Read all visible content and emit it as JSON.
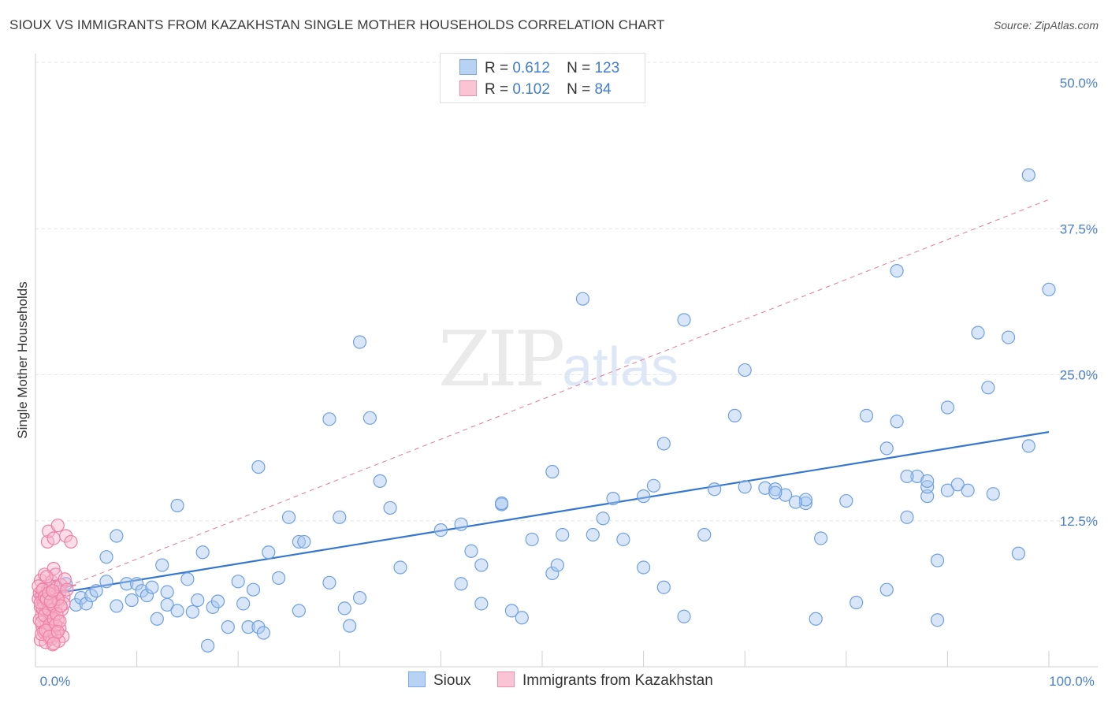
{
  "title": "SIOUX VS IMMIGRANTS FROM KAZAKHSTAN SINGLE MOTHER HOUSEHOLDS CORRELATION CHART",
  "source": "Source: ZipAtlas.com",
  "watermark": {
    "zip": "ZIP",
    "atlas": "atlas"
  },
  "legend": {
    "rows": [
      {
        "r_label": "R =",
        "r_value": "0.612",
        "n_label": "N =",
        "n_value": "123"
      },
      {
        "r_label": "R =",
        "r_value": "0.102",
        "n_label": "N =",
        "n_value": "84"
      }
    ]
  },
  "bottom_legend": {
    "series1": "Sioux",
    "series2": "Immigrants from Kazakhstan"
  },
  "colors": {
    "sioux_fill": "#a9c8f0",
    "sioux_stroke": "#6fa0e0",
    "sioux_line": "#3577d0",
    "kaz_fill": "#f6b6cb",
    "kaz_stroke": "#ee7fa5",
    "kaz_line": "#e07a9b",
    "tick_text": "#4a7fd0",
    "grid": "#e3e3e3"
  },
  "chart_data": {
    "type": "scatter",
    "title": "SIOUX VS IMMIGRANTS FROM KAZAKHSTAN SINGLE MOTHER HOUSEHOLDS CORRELATION CHART",
    "xlabel": "",
    "ylabel": "Single Mother Households",
    "xlim": [
      0,
      100
    ],
    "ylim": [
      0,
      50
    ],
    "x_tick_labels": [
      "0.0%",
      "100.0%"
    ],
    "y_ticks": [
      12.5,
      25.0,
      37.5,
      50.0
    ],
    "y_tick_labels": [
      "12.5%",
      "25.0%",
      "37.5%",
      "50.0%"
    ],
    "grid": true,
    "legend_position": "top-center",
    "series": [
      {
        "name": "Sioux",
        "r": 0.612,
        "n": 123,
        "trend": {
          "x": [
            0,
            100
          ],
          "y": [
            6.0,
            20.1
          ],
          "style": "solid"
        },
        "points": [
          [
            2,
            6.9
          ],
          [
            3,
            7.1
          ],
          [
            4,
            5.3
          ],
          [
            4.5,
            5.9
          ],
          [
            5,
            5.4
          ],
          [
            5.5,
            6.1
          ],
          [
            6,
            6.5
          ],
          [
            7,
            7.3
          ],
          [
            7,
            9.4
          ],
          [
            8,
            11.2
          ],
          [
            8,
            5.2
          ],
          [
            9,
            7.1
          ],
          [
            9.5,
            5.7
          ],
          [
            10,
            7.1
          ],
          [
            10.5,
            6.5
          ],
          [
            11,
            6.1
          ],
          [
            11.5,
            6.8
          ],
          [
            12,
            4.1
          ],
          [
            12.5,
            8.7
          ],
          [
            13,
            6.4
          ],
          [
            13,
            5.3
          ],
          [
            14,
            4.8
          ],
          [
            14,
            13.8
          ],
          [
            15,
            7.5
          ],
          [
            15.5,
            4.7
          ],
          [
            16,
            5.7
          ],
          [
            16.5,
            9.8
          ],
          [
            17,
            1.8
          ],
          [
            17.5,
            5.1
          ],
          [
            18,
            5.6
          ],
          [
            19,
            3.4
          ],
          [
            20,
            7.3
          ],
          [
            20.5,
            5.4
          ],
          [
            21,
            3.4
          ],
          [
            21.5,
            6.6
          ],
          [
            22,
            17.1
          ],
          [
            22,
            3.4
          ],
          [
            22.5,
            2.9
          ],
          [
            23,
            9.8
          ],
          [
            24,
            7.6
          ],
          [
            25,
            12.8
          ],
          [
            26,
            10.7
          ],
          [
            26.5,
            10.7
          ],
          [
            26,
            4.8
          ],
          [
            29,
            21.2
          ],
          [
            29,
            7.2
          ],
          [
            30,
            12.8
          ],
          [
            30.5,
            5.0
          ],
          [
            31,
            3.5
          ],
          [
            32,
            27.8
          ],
          [
            32,
            5.9
          ],
          [
            33,
            21.3
          ],
          [
            34,
            15.9
          ],
          [
            35,
            13.6
          ],
          [
            36,
            8.5
          ],
          [
            40,
            11.7
          ],
          [
            42,
            12.2
          ],
          [
            42,
            7.1
          ],
          [
            43,
            9.9
          ],
          [
            44,
            8.7
          ],
          [
            44,
            5.4
          ],
          [
            46,
            13.9
          ],
          [
            47,
            4.8
          ],
          [
            48,
            4.2
          ],
          [
            49,
            10.9
          ],
          [
            51,
            8.0
          ],
          [
            51,
            16.7
          ],
          [
            51.5,
            8.7
          ],
          [
            52,
            11.3
          ],
          [
            54,
            31.5
          ],
          [
            55,
            11.3
          ],
          [
            56,
            12.7
          ],
          [
            57,
            14.4
          ],
          [
            58,
            10.9
          ],
          [
            60,
            8.5
          ],
          [
            60,
            14.6
          ],
          [
            62,
            19.1
          ],
          [
            62,
            6.8
          ],
          [
            64,
            29.7
          ],
          [
            66,
            11.3
          ],
          [
            67,
            15.2
          ],
          [
            69,
            21.5
          ],
          [
            70,
            25.4
          ],
          [
            72,
            15.3
          ],
          [
            73,
            15.2
          ],
          [
            74,
            14.7
          ],
          [
            76,
            14.0
          ],
          [
            76,
            14.3
          ],
          [
            77,
            4.1
          ],
          [
            77.5,
            11.0
          ],
          [
            81,
            5.5
          ],
          [
            82,
            21.5
          ],
          [
            84,
            6.6
          ],
          [
            84,
            18.7
          ],
          [
            85,
            21.0
          ],
          [
            86,
            12.8
          ],
          [
            87,
            16.3
          ],
          [
            88,
            14.6
          ],
          [
            88,
            15.4
          ],
          [
            88,
            15.9
          ],
          [
            89,
            4.0
          ],
          [
            89,
            9.1
          ],
          [
            90,
            15.1
          ],
          [
            90,
            22.2
          ],
          [
            91,
            15.6
          ],
          [
            92,
            15.1
          ],
          [
            93,
            28.6
          ],
          [
            94,
            23.9
          ],
          [
            96,
            28.2
          ],
          [
            97,
            9.7
          ],
          [
            98,
            18.9
          ],
          [
            98,
            42.1
          ],
          [
            100,
            32.3
          ],
          [
            94.5,
            14.8
          ],
          [
            86,
            16.3
          ],
          [
            61,
            15.5
          ],
          [
            64,
            4.3
          ],
          [
            70,
            15.4
          ],
          [
            73,
            14.9
          ],
          [
            80,
            14.2
          ],
          [
            75,
            14.1
          ],
          [
            85,
            33.9
          ],
          [
            46,
            14.0
          ]
        ]
      },
      {
        "name": "Immigrants from Kazakhstan",
        "r": 0.102,
        "n": 84,
        "trend": {
          "x": [
            0,
            100
          ],
          "y": [
            5.8,
            40.0
          ],
          "style": "dashed"
        },
        "points": [
          [
            0.3,
            5.8
          ],
          [
            0.4,
            6.3
          ],
          [
            0.5,
            5.1
          ],
          [
            0.5,
            7.4
          ],
          [
            0.6,
            6.0
          ],
          [
            0.6,
            4.4
          ],
          [
            0.7,
            3.4
          ],
          [
            0.8,
            5.5
          ],
          [
            0.8,
            6.7
          ],
          [
            0.9,
            2.9
          ],
          [
            0.9,
            7.9
          ],
          [
            1.0,
            6.1
          ],
          [
            1.0,
            4.8
          ],
          [
            1.1,
            5.7
          ],
          [
            1.1,
            3.7
          ],
          [
            1.2,
            6.5
          ],
          [
            1.2,
            10.7
          ],
          [
            1.3,
            2.5
          ],
          [
            1.3,
            11.6
          ],
          [
            1.4,
            5.2
          ],
          [
            1.4,
            6.9
          ],
          [
            1.5,
            4.1
          ],
          [
            1.5,
            3.1
          ],
          [
            1.6,
            7.3
          ],
          [
            1.6,
            5.9
          ],
          [
            1.7,
            1.9
          ],
          [
            1.7,
            4.6
          ],
          [
            1.8,
            8.4
          ],
          [
            1.8,
            11.0
          ],
          [
            1.9,
            6.3
          ],
          [
            1.9,
            3.5
          ],
          [
            2.0,
            5.0
          ],
          [
            2.0,
            7.9
          ],
          [
            2.1,
            2.9
          ],
          [
            2.1,
            6.8
          ],
          [
            2.2,
            4.0
          ],
          [
            2.2,
            12.1
          ],
          [
            2.3,
            5.6
          ],
          [
            2.4,
            3.3
          ],
          [
            2.4,
            6.4
          ],
          [
            2.5,
            7.0
          ],
          [
            2.6,
            4.9
          ],
          [
            2.7,
            2.6
          ],
          [
            2.8,
            6.0
          ],
          [
            2.8,
            5.4
          ],
          [
            2.9,
            7.5
          ],
          [
            3.0,
            11.2
          ],
          [
            3.1,
            6.6
          ],
          [
            0.4,
            4.0
          ],
          [
            0.5,
            2.3
          ],
          [
            0.6,
            3.8
          ],
          [
            0.7,
            5.0
          ],
          [
            0.8,
            3.0
          ],
          [
            0.9,
            4.4
          ],
          [
            1.0,
            2.1
          ],
          [
            1.1,
            7.7
          ],
          [
            1.2,
            3.2
          ],
          [
            1.3,
            4.9
          ],
          [
            1.4,
            3.6
          ],
          [
            1.5,
            6.2
          ],
          [
            1.6,
            2.4
          ],
          [
            1.7,
            5.3
          ],
          [
            1.8,
            4.1
          ],
          [
            1.9,
            2.7
          ],
          [
            2.0,
            3.6
          ],
          [
            2.1,
            4.5
          ],
          [
            2.2,
            5.8
          ],
          [
            2.3,
            2.2
          ],
          [
            2.4,
            3.9
          ],
          [
            2.5,
            5.2
          ],
          [
            0.3,
            6.9
          ],
          [
            0.5,
            5.5
          ],
          [
            0.7,
            6.6
          ],
          [
            0.9,
            6.0
          ],
          [
            1.1,
            5.8
          ],
          [
            1.3,
            6.3
          ],
          [
            1.5,
            5.6
          ],
          [
            1.7,
            6.5
          ],
          [
            3.5,
            10.7
          ],
          [
            0.6,
            2.8
          ],
          [
            1.0,
            3.1
          ],
          [
            1.4,
            2.6
          ],
          [
            1.8,
            2.0
          ],
          [
            2.2,
            3.0
          ]
        ]
      }
    ]
  }
}
